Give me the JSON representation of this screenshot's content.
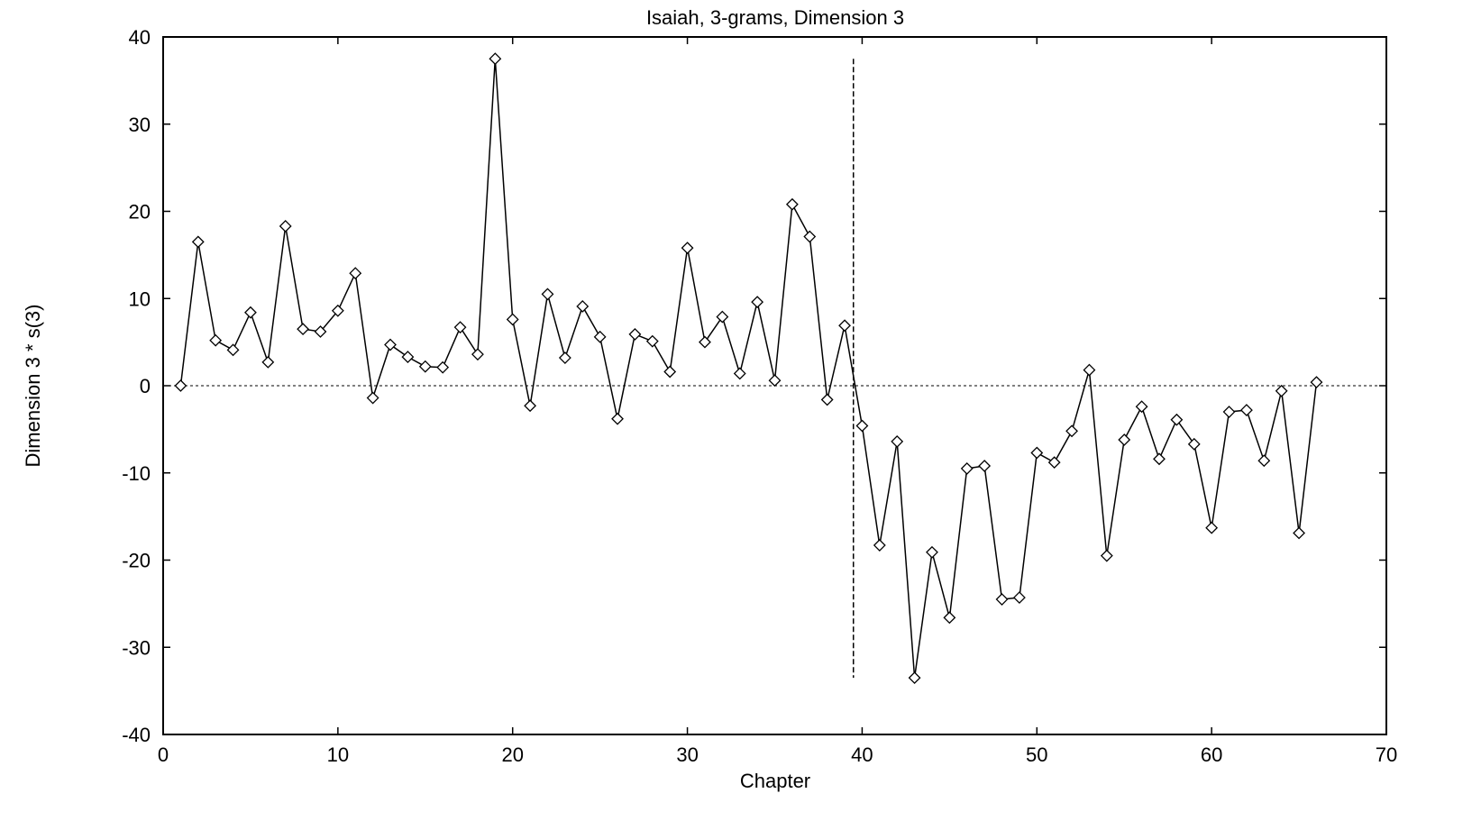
{
  "chart_data": {
    "type": "line",
    "title": "Isaiah, 3-grams, Dimension 3",
    "xlabel": "Chapter",
    "ylabel": "Dimension 3 * s(3)",
    "xlim": [
      0,
      70
    ],
    "ylim": [
      -40,
      40
    ],
    "xticks": [
      0,
      10,
      20,
      30,
      40,
      50,
      60,
      70
    ],
    "yticks": [
      40,
      30,
      20,
      10,
      0,
      -10,
      -20,
      -30,
      -40
    ],
    "grid": false,
    "marker": "diamond",
    "reference_lines": {
      "horizontal_y": 0,
      "vertical_x": 39.5,
      "vertical_y_range": [
        -33.5,
        37.5
      ]
    },
    "series": [
      {
        "x": [
          1,
          2,
          3,
          4,
          5,
          6,
          7,
          8,
          9,
          10,
          11,
          12,
          13,
          14,
          15,
          16,
          17,
          18,
          19,
          20,
          21,
          22,
          23,
          24,
          25,
          26,
          27,
          28,
          29,
          30,
          31,
          32,
          33,
          34,
          35,
          36,
          37,
          38,
          39,
          40,
          41,
          42,
          43,
          44,
          45,
          46,
          47,
          48,
          49,
          50,
          51,
          52,
          53,
          54,
          55,
          56,
          57,
          58,
          59,
          60,
          61,
          62,
          63,
          64,
          65,
          66
        ],
        "y": [
          0,
          16.5,
          5.2,
          4.1,
          8.4,
          2.7,
          18.3,
          6.5,
          6.2,
          8.6,
          12.9,
          -1.4,
          4.7,
          3.3,
          2.2,
          2.1,
          6.7,
          3.6,
          37.5,
          7.6,
          -2.3,
          10.5,
          3.2,
          9.1,
          5.6,
          -3.8,
          5.9,
          5.1,
          1.6,
          15.8,
          5.0,
          7.9,
          1.4,
          9.6,
          0.6,
          20.8,
          17.1,
          -1.6,
          6.9,
          -4.6,
          -18.3,
          -6.4,
          -33.5,
          -19.1,
          -26.6,
          -9.5,
          -9.2,
          -24.5,
          -24.3,
          -7.7,
          -8.8,
          -5.2,
          1.8,
          -19.5,
          -6.2,
          -2.4,
          -8.4,
          -3.9,
          -6.7,
          -16.3,
          -3.0,
          -2.8,
          -8.6,
          -0.6,
          -16.9,
          0.4
        ]
      }
    ]
  }
}
